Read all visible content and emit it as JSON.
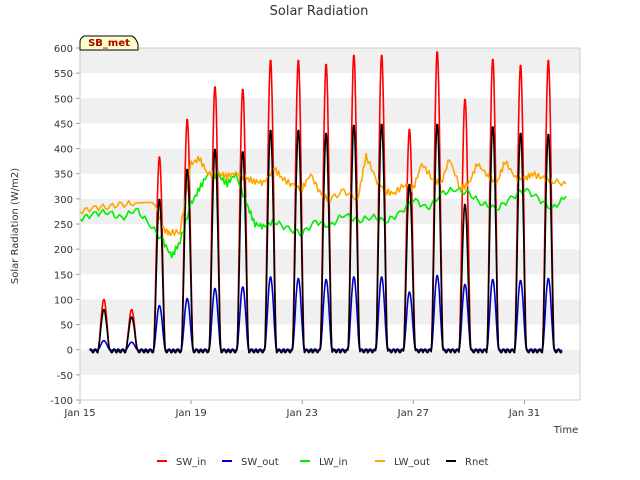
{
  "chart_data": {
    "type": "line",
    "title": "Solar Radiation",
    "xlabel": "Time",
    "ylabel": "Solar Radiation (W/m2)",
    "annotation": "SB_met",
    "ylim": [
      -100,
      600
    ],
    "yticks": [
      -100,
      -50,
      0,
      50,
      100,
      150,
      200,
      250,
      300,
      350,
      400,
      450,
      500,
      550,
      600
    ],
    "xlim_days": [
      0,
      18
    ],
    "xticks": [
      {
        "day": 0,
        "label": "Jan 15"
      },
      {
        "day": 4,
        "label": "Jan 19"
      },
      {
        "day": 8,
        "label": "Jan 23"
      },
      {
        "day": 12,
        "label": "Jan 27"
      },
      {
        "day": 16,
        "label": "Jan 31"
      }
    ],
    "legend_position": "bottom",
    "grid": "horizontal bands",
    "series": [
      {
        "name": "SW_in",
        "color": "#ff0000",
        "peaks": [
          100,
          80,
          385,
          460,
          525,
          520,
          578,
          578,
          570,
          588,
          588,
          440,
          595,
          500,
          580,
          568,
          578
        ]
      },
      {
        "name": "SW_out",
        "color": "#0000cc",
        "peaks": [
          18,
          15,
          88,
          102,
          122,
          125,
          145,
          142,
          140,
          145,
          145,
          115,
          148,
          130,
          140,
          138,
          142
        ]
      },
      {
        "name": "LW_in",
        "color": "#00ee00",
        "points": [
          [
            0,
            260
          ],
          [
            0.5,
            270
          ],
          [
            1,
            275
          ],
          [
            1.5,
            260
          ],
          [
            2,
            280
          ],
          [
            2.5,
            250
          ],
          [
            3,
            215
          ],
          [
            3.3,
            185
          ],
          [
            3.6,
            215
          ],
          [
            4,
            290
          ],
          [
            4.3,
            320
          ],
          [
            4.6,
            350
          ],
          [
            5,
            345
          ],
          [
            5.3,
            330
          ],
          [
            5.6,
            350
          ],
          [
            6,
            290
          ],
          [
            6.3,
            250
          ],
          [
            6.6,
            245
          ],
          [
            7,
            255
          ],
          [
            7.5,
            240
          ],
          [
            8,
            232
          ],
          [
            8.5,
            255
          ],
          [
            9,
            245
          ],
          [
            9.5,
            270
          ],
          [
            10,
            255
          ],
          [
            10.5,
            265
          ],
          [
            11,
            255
          ],
          [
            11.5,
            270
          ],
          [
            12,
            300
          ],
          [
            12.5,
            280
          ],
          [
            13,
            310
          ],
          [
            13.5,
            320
          ],
          [
            14,
            310
          ],
          [
            14.5,
            290
          ],
          [
            15,
            280
          ],
          [
            15.5,
            300
          ],
          [
            16,
            320
          ],
          [
            16.5,
            300
          ],
          [
            17,
            280
          ],
          [
            17.5,
            305
          ]
        ]
      },
      {
        "name": "LW_out",
        "color": "#ffa500",
        "points": [
          [
            0,
            275
          ],
          [
            0.5,
            282
          ],
          [
            1,
            285
          ],
          [
            1.5,
            288
          ],
          [
            2,
            292
          ],
          [
            2.7,
            290
          ],
          [
            3,
            240
          ],
          [
            3.2,
            232
          ],
          [
            3.6,
            235
          ],
          [
            4,
            370
          ],
          [
            4.3,
            380
          ],
          [
            4.6,
            350
          ],
          [
            5,
            350
          ],
          [
            5.3,
            345
          ],
          [
            5.6,
            352
          ],
          [
            6,
            340
          ],
          [
            6.3,
            335
          ],
          [
            6.6,
            332
          ],
          [
            7,
            360
          ],
          [
            7.3,
            340
          ],
          [
            7.7,
            325
          ],
          [
            8,
            320
          ],
          [
            8.3,
            350
          ],
          [
            8.7,
            305
          ],
          [
            9,
            300
          ],
          [
            9.5,
            315
          ],
          [
            10,
            300
          ],
          [
            10.3,
            385
          ],
          [
            10.7,
            335
          ],
          [
            11,
            315
          ],
          [
            11.3,
            310
          ],
          [
            11.7,
            330
          ],
          [
            12,
            320
          ],
          [
            12.3,
            370
          ],
          [
            12.7,
            340
          ],
          [
            13,
            330
          ],
          [
            13.3,
            380
          ],
          [
            13.7,
            320
          ],
          [
            14,
            330
          ],
          [
            14.3,
            370
          ],
          [
            14.7,
            345
          ],
          [
            15,
            330
          ],
          [
            15.3,
            375
          ],
          [
            15.7,
            340
          ],
          [
            16,
            340
          ],
          [
            16.3,
            350
          ],
          [
            16.7,
            340
          ],
          [
            17,
            335
          ],
          [
            17.5,
            330
          ]
        ]
      },
      {
        "name": "Rnet",
        "color": "#000000",
        "peaks": [
          80,
          65,
          300,
          360,
          400,
          395,
          438,
          438,
          432,
          448,
          450,
          330,
          450,
          290,
          445,
          432,
          430
        ]
      }
    ]
  }
}
